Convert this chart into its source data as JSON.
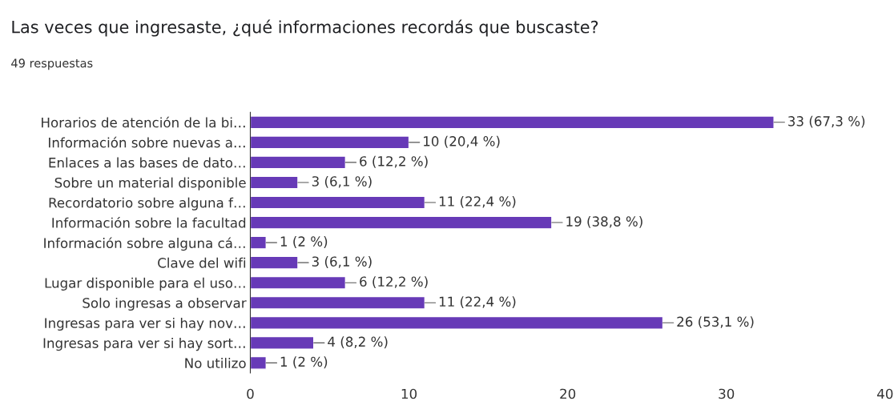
{
  "chart_data": {
    "type": "bar",
    "orientation": "horizontal",
    "title": "Las veces que ingresaste, ¿qué informaciones recordás que buscaste?",
    "subtitle": "49 respuestas",
    "categories": [
      "Horarios de atención de la bi…",
      "Información sobre nuevas a…",
      "Enlaces a las bases de dato…",
      "Sobre un material disponible",
      "Recordatorio sobre alguna f…",
      "Información sobre la facultad",
      "Información sobre alguna cá…",
      "Clave del wifi",
      "Lugar disponible para el uso…",
      "Solo ingresas a observar",
      "Ingresas para ver si hay nov…",
      "Ingresas para ver si hay sort…",
      "No utilizo"
    ],
    "values": [
      33,
      10,
      6,
      3,
      11,
      19,
      1,
      3,
      6,
      11,
      26,
      4,
      1
    ],
    "value_labels": [
      "33 (67,3 %)",
      "10 (20,4 %)",
      "6 (12,2 %)",
      "3 (6,1 %)",
      "11 (22,4 %)",
      "19 (38,8 %)",
      "1 (2 %)",
      "3 (6,1 %)",
      "6 (12,2 %)",
      "11 (22,4 %)",
      "26 (53,1 %)",
      "4 (8,2 %)",
      "1 (2 %)"
    ],
    "color": "#673ab7",
    "xlim": [
      0,
      40
    ],
    "xticks": [
      0,
      10,
      20,
      30,
      40
    ],
    "grid": false,
    "legend": false
  }
}
